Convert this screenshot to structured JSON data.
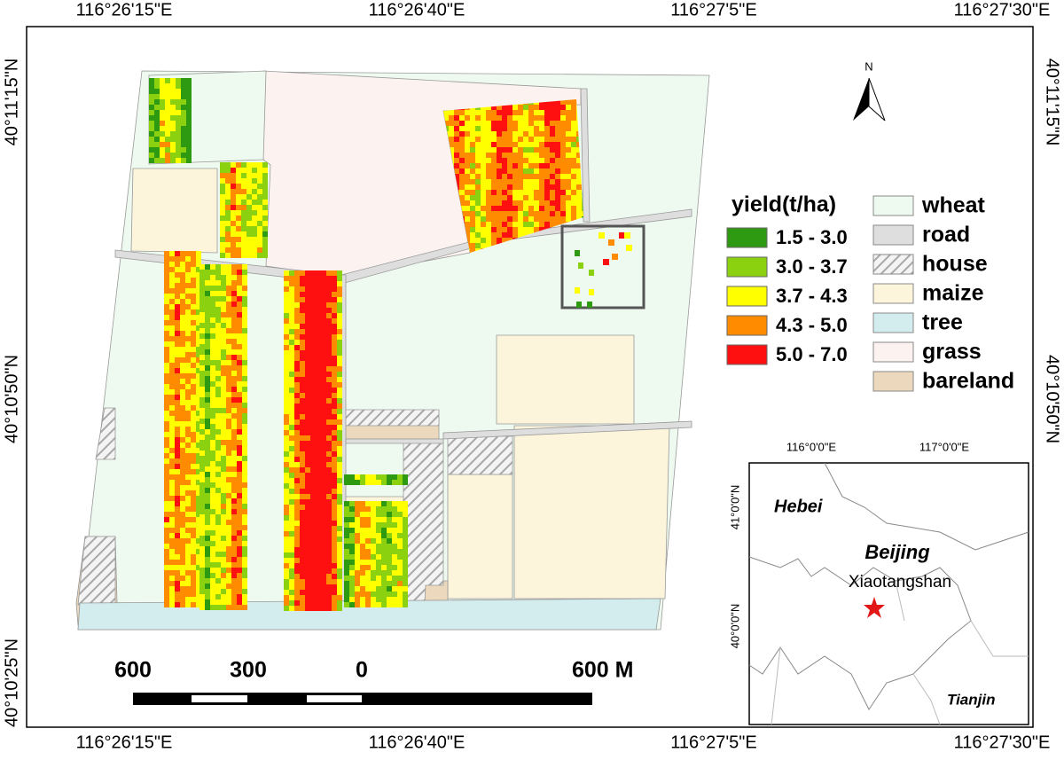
{
  "map": {
    "lon_labels": [
      "116°26'15\"E",
      "116°26'40\"E",
      "116°27'5\"E",
      "116°27'30\"E"
    ],
    "lat_labels": [
      "40°11'15\"N",
      "40°10'50\"N",
      "40°10'25\"N"
    ],
    "north": "N",
    "legend": {
      "yield": {
        "title": "yield(t/ha)",
        "classes": [
          {
            "label": "1.5 - 3.0",
            "color": "#2e9a12"
          },
          {
            "label": "3.0 - 3.7",
            "color": "#8cd10f"
          },
          {
            "label": "3.7 - 4.3",
            "color": "#ffff00"
          },
          {
            "label": "4.3 - 5.0",
            "color": "#ff8c00"
          },
          {
            "label": "5.0 - 7.0",
            "color": "#ff1010"
          }
        ]
      },
      "landcover": [
        {
          "label": "wheat",
          "color": "#eefaf0"
        },
        {
          "label": "road",
          "color": "#dedede"
        },
        {
          "label": "house",
          "color": "#a8a8a8",
          "hatched": true
        },
        {
          "label": "maize",
          "color": "#fcf5dc"
        },
        {
          "label": "tree",
          "color": "#d3ecee"
        },
        {
          "label": "grass",
          "color": "#fcf3f1"
        },
        {
          "label": "bareland",
          "color": "#ecd9bd"
        }
      ]
    },
    "scale_bar": {
      "labels": [
        "600",
        "300",
        "0",
        "600 M"
      ]
    },
    "inset": {
      "lon_labels": [
        "116°0'0\"E",
        "117°0'0\"E"
      ],
      "lat_labels": [
        "41°0'0\"N",
        "40°0'0\"N"
      ],
      "places": [
        "Hebei",
        "Beijing",
        "Xiaotangshan",
        "Tianjin"
      ]
    }
  }
}
